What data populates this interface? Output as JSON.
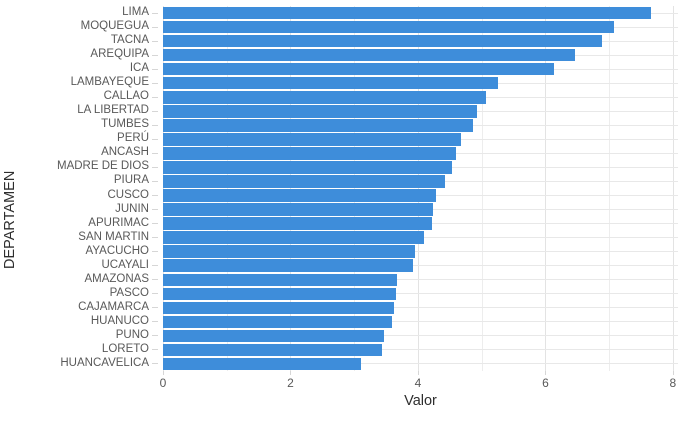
{
  "chart_data": {
    "type": "bar",
    "orientation": "horizontal",
    "title": "",
    "xlabel": "Valor",
    "ylabel": "DEPARTAMEN",
    "categories": [
      "LIMA",
      "MOQUEGUA",
      "TACNA",
      "AREQUIPA",
      "ICA",
      "LAMBAYEQUE",
      "CALLAO",
      "LA LIBERTAD",
      "TUMBES",
      "PERÚ",
      "ANCASH",
      "MADRE DE DIOS",
      "PIURA",
      "CUSCO",
      "JUNIN",
      "APURIMAC",
      "SAN MARTIN",
      "AYACUCHO",
      "UCAYALI",
      "AMAZONAS",
      "PASCO",
      "CAJAMARCA",
      "HUANUCO",
      "PUNO",
      "LORETO",
      "HUANCAVELICA"
    ],
    "values": [
      7.65,
      7.07,
      6.89,
      6.47,
      6.14,
      5.25,
      5.06,
      4.92,
      4.87,
      4.68,
      4.59,
      4.54,
      4.42,
      4.29,
      4.24,
      4.22,
      4.09,
      3.96,
      3.93,
      3.67,
      3.65,
      3.62,
      3.6,
      3.46,
      3.43,
      3.11
    ],
    "xlim": [
      0,
      8.08
    ],
    "x_ticks": [
      0,
      2,
      4,
      6,
      8
    ],
    "gridlines_vertical_at": [
      0,
      1,
      2,
      3,
      4,
      5,
      6,
      7,
      8
    ],
    "grid": "vertical major (even) + minor (odd), horizontal major per category",
    "legend_position": "none",
    "colors": {
      "bar": "#3e8dda",
      "grid_major": "#e3e3e3",
      "grid_minor": "#ededed",
      "tick_mark": "#d6d6d6",
      "tick_label_text": "#595959",
      "axis_title_text": "#2e2e2e",
      "background": "#ffffff"
    }
  }
}
